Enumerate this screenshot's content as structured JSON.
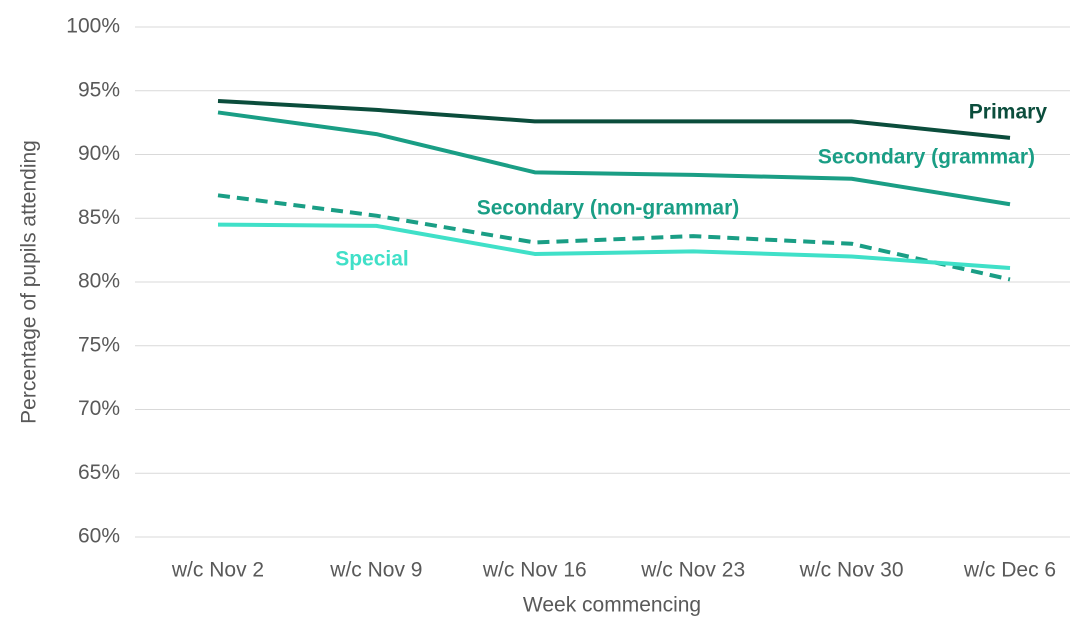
{
  "chart_data": {
    "type": "line",
    "x_label": "Week commencing",
    "y_label": "Percentage of pupils attending",
    "categories": [
      "w/c Nov 2",
      "w/c Nov 9",
      "w/c Nov 16",
      "w/c Nov 23",
      "w/c Nov 30",
      "w/c Dec 6"
    ],
    "series": [
      {
        "name": "Primary",
        "color": "#0b4d3c",
        "dashed": false,
        "values": [
          94.2,
          93.5,
          92.6,
          92.6,
          92.6,
          91.3
        ]
      },
      {
        "name": "Secondary (grammar)",
        "color": "#1a9e85",
        "dashed": false,
        "values": [
          93.3,
          91.6,
          88.6,
          88.4,
          88.1,
          86.1
        ]
      },
      {
        "name": "Secondary (non-grammar)",
        "color": "#1a9e85",
        "dashed": true,
        "values": [
          86.8,
          85.2,
          83.1,
          83.6,
          83.0,
          80.2
        ]
      },
      {
        "name": "Special",
        "color": "#40e0c8",
        "dashed": false,
        "values": [
          84.5,
          84.4,
          82.2,
          82.4,
          82.0,
          81.1
        ]
      }
    ],
    "ylim": [
      60,
      100
    ],
    "yticks": [
      {
        "value": 60,
        "label": "60%"
      },
      {
        "value": 65,
        "label": "65%"
      },
      {
        "value": 70,
        "label": "70%"
      },
      {
        "value": 75,
        "label": "75%"
      },
      {
        "value": 80,
        "label": "80%"
      },
      {
        "value": 85,
        "label": "85%"
      },
      {
        "value": 90,
        "label": "90%"
      },
      {
        "value": 95,
        "label": "95%"
      },
      {
        "value": 100,
        "label": "100%"
      }
    ],
    "grid": true
  }
}
